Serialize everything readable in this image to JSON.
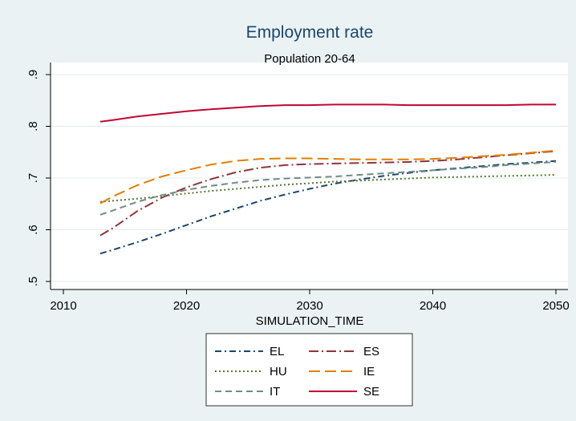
{
  "chart_data": {
    "type": "line",
    "title": "Employment rate",
    "subtitle": "Population 20-64",
    "xlabel": "SIMULATION_TIME",
    "ylabel": "",
    "xlim": [
      2010,
      2050
    ],
    "ylim": [
      0.5,
      0.9
    ],
    "xticks": [
      2010,
      2020,
      2030,
      2040,
      2050
    ],
    "xtick_labels": [
      "2010",
      "2020",
      "2030",
      "2040",
      "2050"
    ],
    "yticks": [
      0.5,
      0.6,
      0.7,
      0.8,
      0.9
    ],
    "ytick_labels": [
      ".5",
      ".6",
      ".7",
      ".8",
      ".9"
    ],
    "grid": true,
    "legend_position": "bottom",
    "x": [
      2013,
      2014,
      2016,
      2018,
      2020,
      2022,
      2024,
      2026,
      2028,
      2030,
      2032,
      2034,
      2036,
      2038,
      2040,
      2042,
      2044,
      2046,
      2048,
      2050
    ],
    "series": [
      {
        "name": "EL",
        "color": "#1a476f",
        "dash": "dashdot",
        "values": [
          0.554,
          0.561,
          0.576,
          0.592,
          0.609,
          0.626,
          0.641,
          0.656,
          0.668,
          0.679,
          0.689,
          0.697,
          0.704,
          0.71,
          0.715,
          0.719,
          0.723,
          0.727,
          0.73,
          0.733
        ]
      },
      {
        "name": "ES",
        "color": "#90353b",
        "dash": "longdashdot",
        "values": [
          0.589,
          0.603,
          0.636,
          0.662,
          0.682,
          0.698,
          0.711,
          0.72,
          0.725,
          0.727,
          0.728,
          0.729,
          0.73,
          0.731,
          0.733,
          0.736,
          0.74,
          0.744,
          0.748,
          0.752
        ]
      },
      {
        "name": "HU",
        "color": "#55752f",
        "dash": "dot",
        "values": [
          0.654,
          0.656,
          0.66,
          0.665,
          0.67,
          0.675,
          0.679,
          0.683,
          0.687,
          0.69,
          0.693,
          0.695,
          0.697,
          0.699,
          0.701,
          0.702,
          0.703,
          0.704,
          0.705,
          0.706
        ]
      },
      {
        "name": "IE",
        "color": "#e37e00",
        "dash": "longdash",
        "values": [
          0.651,
          0.664,
          0.686,
          0.703,
          0.715,
          0.726,
          0.733,
          0.737,
          0.738,
          0.738,
          0.737,
          0.736,
          0.736,
          0.736,
          0.737,
          0.739,
          0.742,
          0.745,
          0.749,
          0.753
        ]
      },
      {
        "name": "IT",
        "color": "#6e8e84",
        "dash": "dash",
        "values": [
          0.629,
          0.637,
          0.654,
          0.667,
          0.677,
          0.685,
          0.691,
          0.696,
          0.699,
          0.701,
          0.703,
          0.706,
          0.709,
          0.712,
          0.715,
          0.718,
          0.721,
          0.725,
          0.728,
          0.731
        ]
      },
      {
        "name": "SE",
        "color": "#c10534",
        "dash": "solid",
        "values": [
          0.809,
          0.812,
          0.819,
          0.824,
          0.829,
          0.833,
          0.836,
          0.839,
          0.841,
          0.841,
          0.842,
          0.842,
          0.842,
          0.841,
          0.841,
          0.841,
          0.841,
          0.841,
          0.842,
          0.842
        ]
      }
    ],
    "legend_order": [
      "EL",
      "ES",
      "HU",
      "IE",
      "IT",
      "SE"
    ]
  }
}
